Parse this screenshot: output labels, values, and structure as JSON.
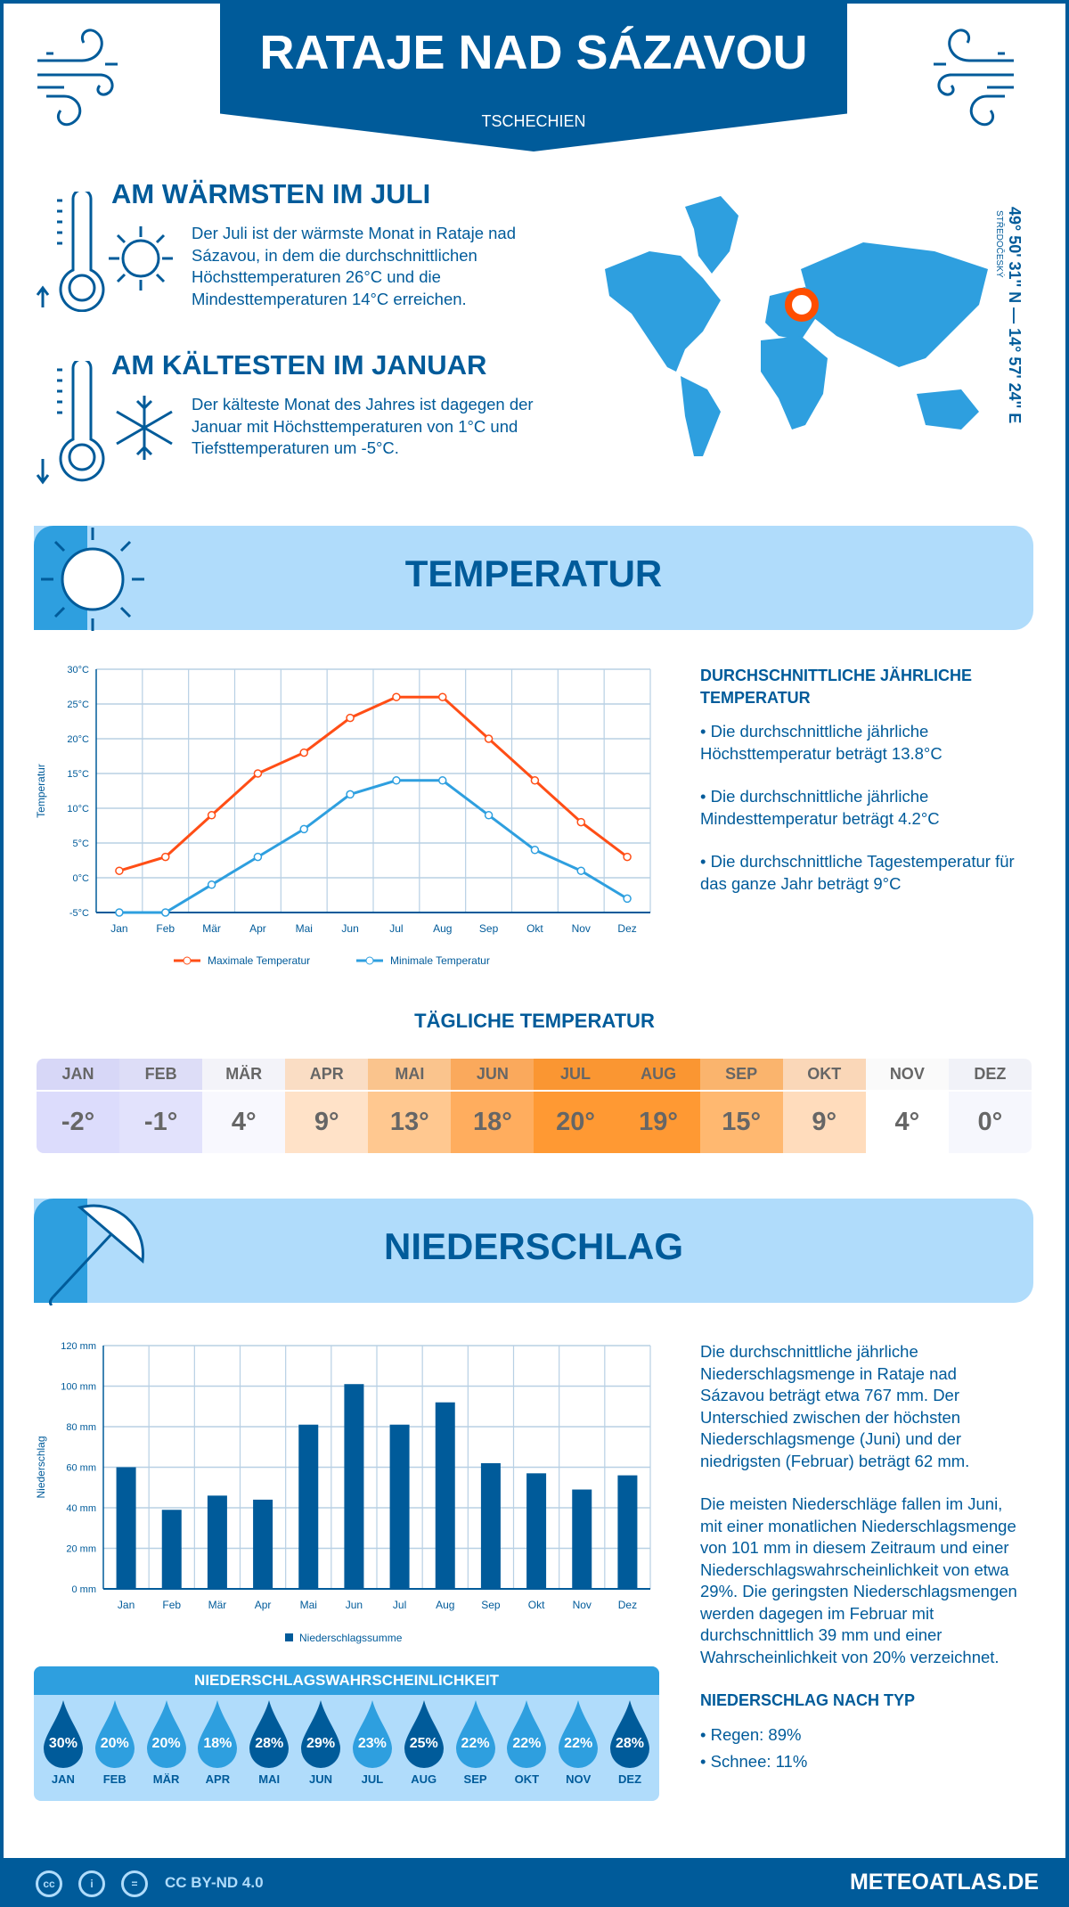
{
  "header": {
    "title": "RATAJE NAD SÁZAVOU",
    "country": "TSCHECHIEN"
  },
  "warm": {
    "title": "AM WÄRMSTEN IM JULI",
    "text": "Der Juli ist der wärmste Monat in Rataje nad Sázavou, in dem die durchschnittlichen Höchsttemperaturen 26°C und die Mindesttemperaturen 14°C erreichen."
  },
  "cold": {
    "title": "AM KÄLTESTEN IM JANUAR",
    "text": "Der kälteste Monat des Jahres ist dagegen der Januar mit Höchsttemperaturen von 1°C und Tiefsttemperaturen um -5°C."
  },
  "map": {
    "coords": "49° 50' 31'' N — 14° 57' 24'' E",
    "region": "STŘEDOČESKÝ",
    "marker_color": "#ff4e00"
  },
  "temperature": {
    "banner": "TEMPERATUR",
    "side_title": "DURCHSCHNITTLICHE JÄHRLICHE TEMPERATUR",
    "bullets": [
      "• Die durchschnittliche jährliche Höchsttemperatur beträgt 13.8°C",
      "• Die durchschnittliche jährliche Mindesttemperatur beträgt 4.2°C",
      "• Die durchschnittliche Tagestemperatur für das ganze Jahr beträgt 9°C"
    ]
  },
  "daily": {
    "title": "TÄGLICHE TEMPERATUR",
    "months": [
      "JAN",
      "FEB",
      "MÄR",
      "APR",
      "MAI",
      "JUN",
      "JUL",
      "AUG",
      "SEP",
      "OKT",
      "NOV",
      "DEZ"
    ],
    "values": [
      "-2°",
      "-1°",
      "4°",
      "9°",
      "13°",
      "18°",
      "20°",
      "19°",
      "15°",
      "9°",
      "4°",
      "0°"
    ],
    "colors": [
      "#dcdcfc",
      "#e2e2fc",
      "#f8f8fe",
      "#ffe2c8",
      "#ffc890",
      "#ffad5e",
      "#ff9933",
      "#ff9933",
      "#ffb870",
      "#ffdcbc",
      "#ffffff",
      "#f6f7fd"
    ]
  },
  "precip": {
    "banner": "NIEDERSCHLAG",
    "paragraphs": [
      "Die durchschnittliche jährliche Niederschlagsmenge in Rataje nad Sázavou beträgt etwa 767 mm. Der Unterschied zwischen der höchsten Niederschlagsmenge (Juni) und der niedrigsten (Februar) beträgt 62 mm.",
      "Die meisten Niederschläge fallen im Juni, mit einer monatlichen Niederschlagsmenge von 101 mm in diesem Zeitraum und einer Niederschlagswahrscheinlichkeit von etwa 29%. Die geringsten Niederschlagsmengen werden dagegen im Februar mit durchschnittlich 39 mm und einer Wahrscheinlichkeit von 20% verzeichnet."
    ],
    "type_title": "NIEDERSCHLAG NACH TYP",
    "types": [
      "• Regen: 89%",
      "• Schnee: 11%"
    ]
  },
  "probability": {
    "title": "NIEDERSCHLAGSWAHRSCHEINLICHKEIT",
    "months": [
      "JAN",
      "FEB",
      "MÄR",
      "APR",
      "MAI",
      "JUN",
      "JUL",
      "AUG",
      "SEP",
      "OKT",
      "NOV",
      "DEZ"
    ],
    "values": [
      "30%",
      "20%",
      "20%",
      "18%",
      "28%",
      "29%",
      "23%",
      "25%",
      "22%",
      "22%",
      "22%",
      "28%"
    ],
    "dark": [
      true,
      false,
      false,
      false,
      true,
      true,
      false,
      true,
      false,
      false,
      false,
      true
    ]
  },
  "footer": {
    "license": "CC BY-ND 4.0",
    "brand": "METEOATLAS.DE"
  },
  "chart_data": [
    {
      "type": "line",
      "categories": [
        "Jan",
        "Feb",
        "Mär",
        "Apr",
        "Mai",
        "Jun",
        "Jul",
        "Aug",
        "Sep",
        "Okt",
        "Nov",
        "Dez"
      ],
      "series": [
        {
          "name": "Maximale Temperatur",
          "color": "#ff4e16",
          "values": [
            1,
            3,
            9,
            15,
            18,
            23,
            26,
            26,
            20,
            14,
            8,
            3
          ]
        },
        {
          "name": "Minimale Temperatur",
          "color": "#2e9fdf",
          "values": [
            -5,
            -5,
            -1,
            3,
            7,
            12,
            14,
            14,
            9,
            4,
            1,
            -3
          ]
        }
      ],
      "ylabel": "Temperatur",
      "ylim": [
        -5,
        30
      ],
      "yticks": [
        "-5°C",
        "0°C",
        "5°C",
        "10°C",
        "15°C",
        "20°C",
        "25°C",
        "30°C"
      ],
      "grid": true,
      "legend": "bottom"
    },
    {
      "type": "bar",
      "categories": [
        "Jan",
        "Feb",
        "Mär",
        "Apr",
        "Mai",
        "Jun",
        "Jul",
        "Aug",
        "Sep",
        "Okt",
        "Nov",
        "Dez"
      ],
      "series": [
        {
          "name": "Niederschlagssumme",
          "color": "#005b9a",
          "values": [
            60,
            39,
            46,
            44,
            81,
            101,
            81,
            92,
            62,
            57,
            49,
            56
          ]
        }
      ],
      "ylabel": "Niederschlag",
      "ylim": [
        0,
        120
      ],
      "yticks": [
        "0 mm",
        "20 mm",
        "40 mm",
        "60 mm",
        "80 mm",
        "100 mm",
        "120 mm"
      ],
      "grid": true,
      "legend": "bottom"
    }
  ]
}
